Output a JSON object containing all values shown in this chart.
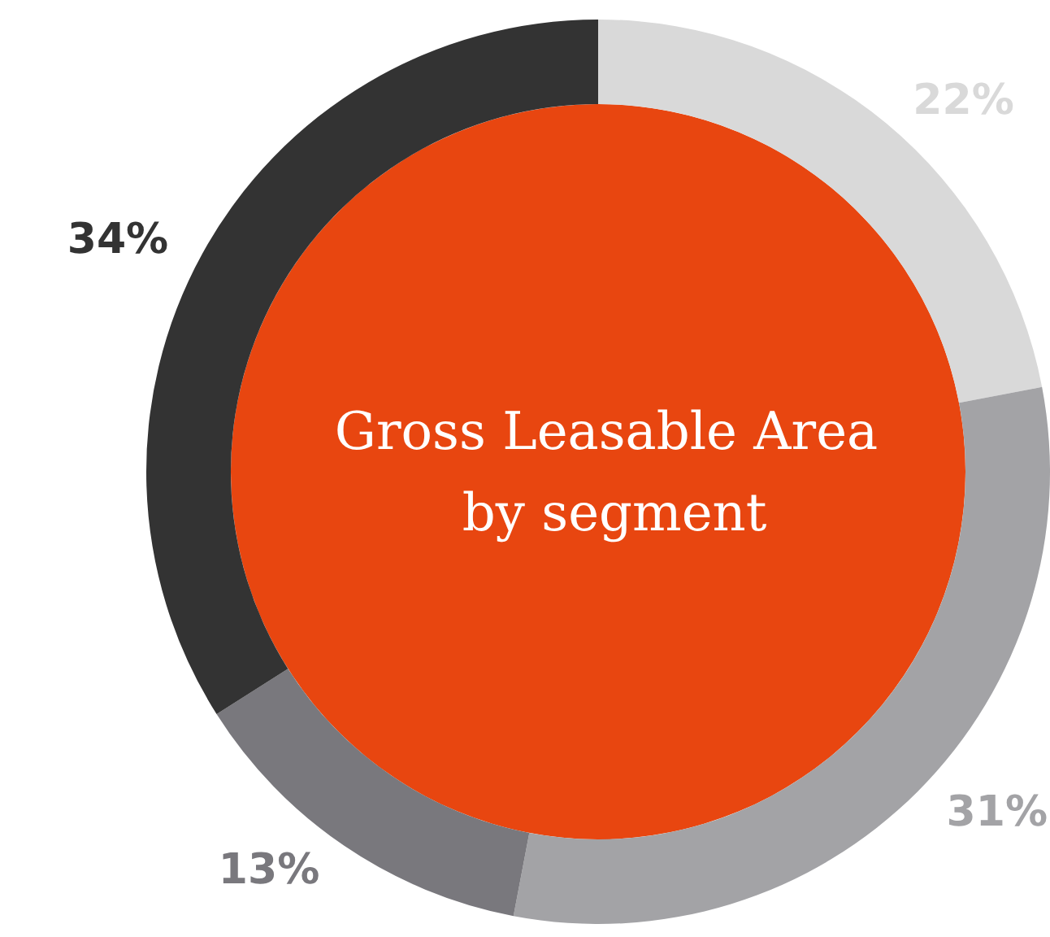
{
  "chart_data": {
    "type": "donut",
    "title": "Gross Leasable Area by segment",
    "categories": [
      null,
      null,
      null,
      null
    ],
    "values": [
      22,
      31,
      13,
      34
    ],
    "colors": [
      "#d9d9d9",
      "#a3a3a6",
      "#79787d",
      "#333333"
    ],
    "value_labels": [
      "22%",
      "31%",
      "13%",
      "34%"
    ]
  }
}
